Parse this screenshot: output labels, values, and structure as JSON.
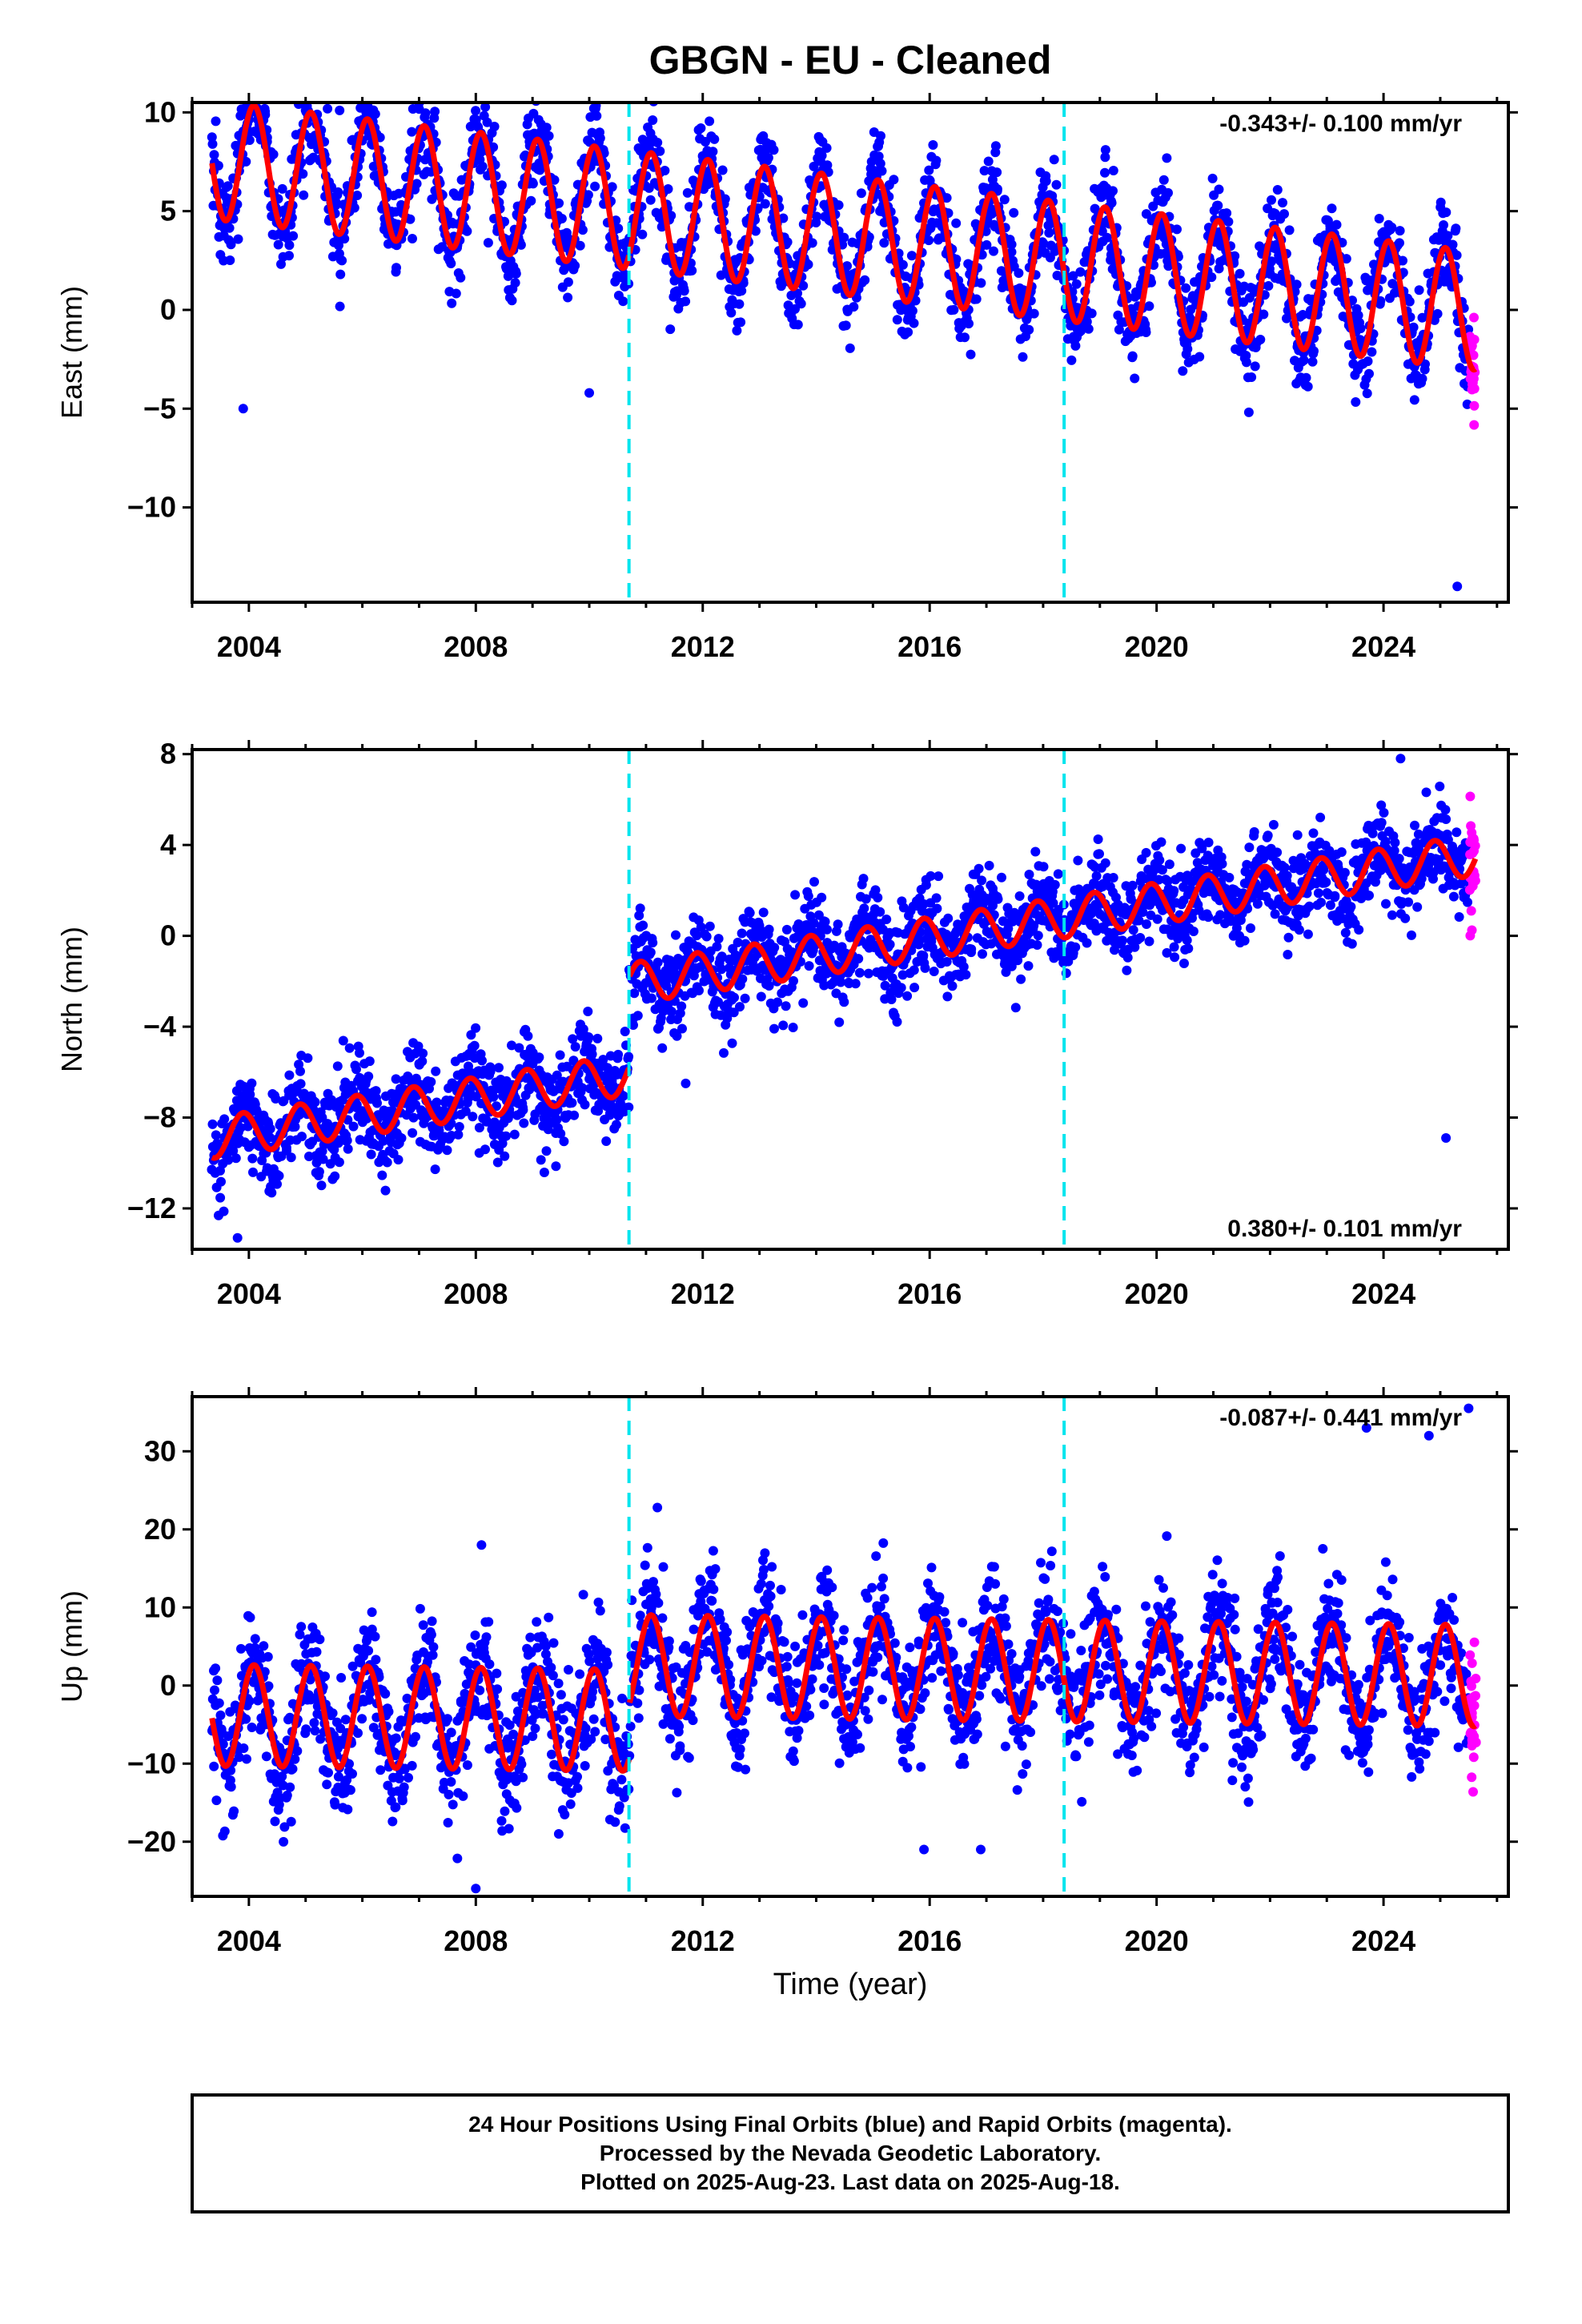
{
  "title": "GBGN  - EU - Cleaned",
  "xlabel": "Time (year)",
  "footer": {
    "line1": "24 Hour Positions Using Final Orbits (blue) and Rapid Orbits (magenta).",
    "line2": "Processed by the Nevada Geodetic Laboratory.",
    "line3": "Plotted on 2025-Aug-23. Last data on 2025-Aug-18."
  },
  "colors": {
    "final": "#0000ff",
    "rapid": "#ff00ff",
    "model": "#ff0000",
    "offset": "#00e5ee"
  },
  "chart_data": [
    {
      "type": "scatter",
      "ylabel": "East (mm)",
      "rate_label": "-0.343+/- 0.100 mm/yr",
      "xlim": [
        2003.0,
        2026.2
      ],
      "ylim": [
        -14.8,
        10.5
      ],
      "xticks": [
        2004,
        2008,
        2012,
        2016,
        2020,
        2024
      ],
      "yticks": [
        10,
        5,
        0,
        -5,
        -10
      ],
      "ytick_labels": [
        "10",
        "5",
        "0",
        "−5",
        "−10"
      ],
      "offsets": [
        2010.7,
        2018.37
      ],
      "data_range": [
        2003.35,
        2025.5
      ],
      "rapid_range": [
        2025.52,
        2025.63
      ],
      "model": {
        "c0": 7.6,
        "rate": -0.343,
        "amp": 3.0,
        "phase": 1.0,
        "jump_at": 2010.7,
        "jump": 0.0
      },
      "scatter_sd": 1.2,
      "outliers": [
        {
          "x": 2005.6,
          "y": 10.1
        },
        {
          "x": 2019.2,
          "y": 5.5
        },
        {
          "x": 2003.9,
          "y": -5.0
        },
        {
          "x": 2010.0,
          "y": -4.2
        },
        {
          "x": 2025.3,
          "y": -14.0
        }
      ]
    },
    {
      "type": "scatter",
      "ylabel": "North (mm)",
      "rate_label": "0.380+/- 0.101 mm/yr",
      "xlim": [
        2003.0,
        2026.2
      ],
      "ylim": [
        -13.8,
        8.2
      ],
      "xticks": [
        2004,
        2008,
        2012,
        2016,
        2020,
        2024
      ],
      "yticks": [
        8,
        4,
        0,
        -4,
        -8,
        -12
      ],
      "ytick_labels": [
        "8",
        "4",
        "0",
        "−4",
        "−8",
        "−12"
      ],
      "offsets": [
        2010.7,
        2018.37
      ],
      "data_range": [
        2003.35,
        2025.5
      ],
      "rapid_range": [
        2025.52,
        2025.63
      ],
      "model": {
        "c0": -8.9,
        "rate": 0.38,
        "amp": 0.9,
        "phase": 2.2,
        "jump_at": 2010.7,
        "jump": 4.0
      },
      "scatter_sd": 1.0,
      "outliers": [
        {
          "x": 2003.8,
          "y": -13.3
        },
        {
          "x": 2011.7,
          "y": -6.5
        },
        {
          "x": 2024.3,
          "y": 7.8
        },
        {
          "x": 2025.1,
          "y": -8.9
        }
      ]
    },
    {
      "type": "scatter",
      "ylabel": "Up (mm)",
      "rate_label": "-0.087+/- 0.441 mm/yr",
      "xlim": [
        2003.0,
        2026.2
      ],
      "ylim": [
        -27.0,
        37.0
      ],
      "xticks": [
        2004,
        2008,
        2012,
        2016,
        2020,
        2024
      ],
      "yticks": [
        30,
        20,
        10,
        0,
        -10,
        -20
      ],
      "ytick_labels": [
        "30",
        "20",
        "10",
        "0",
        "−10",
        "−20"
      ],
      "offsets": [
        2010.7,
        2018.37
      ],
      "data_range": [
        2003.35,
        2025.5
      ],
      "rapid_range": [
        2025.52,
        2025.63
      ],
      "model": {
        "c0": -3.8,
        "rate": -0.087,
        "amp": 6.5,
        "phase": 1.0,
        "jump_at": 2010.7,
        "jump": 7.0
      },
      "scatter_sd": 4.0,
      "outliers": [
        {
          "x": 2008.1,
          "y": 18.0
        },
        {
          "x": 2011.2,
          "y": 22.8
        },
        {
          "x": 2023.7,
          "y": 33.0
        },
        {
          "x": 2024.8,
          "y": 32.0
        },
        {
          "x": 2025.5,
          "y": 35.5
        },
        {
          "x": 2008.0,
          "y": -26.0
        },
        {
          "x": 2015.9,
          "y": -21.0
        },
        {
          "x": 2016.9,
          "y": -21.0
        }
      ]
    }
  ]
}
